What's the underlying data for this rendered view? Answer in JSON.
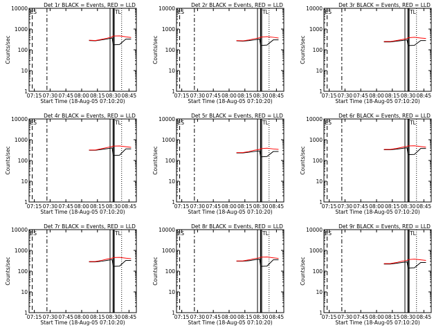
{
  "colors": {
    "events": "#000000",
    "lld": "#ff0000",
    "background": "#ffffff",
    "axes": "#000000"
  },
  "x_tick_labels": [
    "07:15",
    "07:30",
    "07:45",
    "08:00",
    "08:15",
    "08:30",
    "08:45"
  ],
  "y_tick_labels": [
    "1",
    "10",
    "100",
    "1000",
    "10000"
  ],
  "ylabel": "Counts/sec",
  "xlabel": "Start Time (18-Aug-05 07:10:20)",
  "marker_labels": [
    "ES",
    "TL"
  ],
  "chart_data": [
    {
      "type": "line",
      "title": "Det 1r BLACK = Events, RED = LLD",
      "xlabel": "Start Time (18-Aug-05 07:10:20)",
      "ylabel": "Counts/sec",
      "xlim": [
        "07:10",
        "08:52"
      ],
      "ylim": [
        1,
        10000
      ],
      "y_scale": "log",
      "x": [
        "08:07",
        "08:13",
        "08:19",
        "08:24",
        "08:29",
        "08:30",
        "08:36",
        "08:42",
        "08:47"
      ],
      "series": [
        {
          "name": "Events",
          "color": "#000000",
          "values": [
            280,
            270,
            300,
            330,
            370,
            175,
            180,
            330,
            330
          ]
        },
        {
          "name": "LLD",
          "color": "#ff0000",
          "values": [
            290,
            280,
            320,
            360,
            420,
            460,
            470,
            420,
            390
          ]
        }
      ]
    },
    {
      "type": "line",
      "title": "Det 2r BLACK = Events, RED = LLD",
      "xlabel": "Start Time (18-Aug-05 07:10:20)",
      "ylabel": "Counts/sec",
      "xlim": [
        "07:10",
        "08:52"
      ],
      "ylim": [
        1,
        10000
      ],
      "y_scale": "log",
      "x": [
        "08:07",
        "08:13",
        "08:19",
        "08:24",
        "08:29",
        "08:30",
        "08:36",
        "08:42",
        "08:47"
      ],
      "series": [
        {
          "name": "Events",
          "color": "#000000",
          "values": [
            270,
            260,
            280,
            300,
            330,
            160,
            170,
            300,
            300
          ]
        },
        {
          "name": "LLD",
          "color": "#ff0000",
          "values": [
            280,
            270,
            300,
            340,
            380,
            410,
            430,
            400,
            370
          ]
        }
      ]
    },
    {
      "type": "line",
      "title": "Det 3r BLACK = Events, RED = LLD",
      "xlabel": "Start Time (18-Aug-05 07:10:20)",
      "ylabel": "Counts/sec",
      "xlim": [
        "07:10",
        "08:52"
      ],
      "ylim": [
        1,
        10000
      ],
      "y_scale": "log",
      "x": [
        "08:07",
        "08:13",
        "08:19",
        "08:24",
        "08:29",
        "08:30",
        "08:36",
        "08:42",
        "08:47"
      ],
      "series": [
        {
          "name": "Events",
          "color": "#000000",
          "values": [
            240,
            240,
            260,
            280,
            300,
            160,
            165,
            280,
            280
          ]
        },
        {
          "name": "LLD",
          "color": "#ff0000",
          "values": [
            250,
            250,
            280,
            310,
            350,
            380,
            400,
            370,
            350
          ]
        }
      ]
    },
    {
      "type": "line",
      "title": "Det 4r BLACK = Events, RED = LLD",
      "xlabel": "Start Time (18-Aug-05 07:10:20)",
      "ylabel": "Counts/sec",
      "xlim": [
        "07:10",
        "08:52"
      ],
      "ylim": [
        1,
        10000
      ],
      "y_scale": "log",
      "x": [
        "08:07",
        "08:13",
        "08:19",
        "08:24",
        "08:29",
        "08:30",
        "08:36",
        "08:42",
        "08:47"
      ],
      "series": [
        {
          "name": "Events",
          "color": "#000000",
          "values": [
            310,
            310,
            340,
            370,
            400,
            175,
            180,
            360,
            360
          ]
        },
        {
          "name": "LLD",
          "color": "#ff0000",
          "values": [
            320,
            320,
            370,
            420,
            470,
            490,
            500,
            460,
            430
          ]
        }
      ]
    },
    {
      "type": "line",
      "title": "Det 5r BLACK = Events, RED = LLD",
      "xlabel": "Start Time (18-Aug-05 07:10:20)",
      "ylabel": "Counts/sec",
      "xlim": [
        "07:10",
        "08:52"
      ],
      "ylim": [
        1,
        10000
      ],
      "y_scale": "log",
      "x": [
        "08:07",
        "08:13",
        "08:19",
        "08:24",
        "08:29",
        "08:30",
        "08:36",
        "08:42",
        "08:47"
      ],
      "series": [
        {
          "name": "Events",
          "color": "#000000",
          "values": [
            230,
            230,
            250,
            270,
            290,
            150,
            155,
            270,
            270
          ]
        },
        {
          "name": "LLD",
          "color": "#ff0000",
          "values": [
            240,
            240,
            270,
            310,
            340,
            370,
            390,
            360,
            340
          ]
        }
      ]
    },
    {
      "type": "line",
      "title": "Det 6r BLACK = Events, RED = LLD",
      "xlabel": "Start Time (18-Aug-05 07:10:20)",
      "ylabel": "Counts/sec",
      "xlim": [
        "07:10",
        "08:52"
      ],
      "ylim": [
        1,
        10000
      ],
      "y_scale": "log",
      "x": [
        "08:07",
        "08:13",
        "08:19",
        "08:24",
        "08:29",
        "08:30",
        "08:36",
        "08:42",
        "08:47"
      ],
      "series": [
        {
          "name": "Events",
          "color": "#000000",
          "values": [
            330,
            330,
            350,
            380,
            410,
            190,
            195,
            380,
            380
          ]
        },
        {
          "name": "LLD",
          "color": "#ff0000",
          "values": [
            340,
            340,
            380,
            430,
            480,
            500,
            510,
            470,
            440
          ]
        }
      ]
    },
    {
      "type": "line",
      "title": "Det 7r BLACK = Events, RED = LLD",
      "xlabel": "Start Time (18-Aug-05 07:10:20)",
      "ylabel": "Counts/sec",
      "xlim": [
        "07:10",
        "08:52"
      ],
      "ylim": [
        1,
        10000
      ],
      "y_scale": "log",
      "x": [
        "08:07",
        "08:13",
        "08:19",
        "08:24",
        "08:29",
        "08:30",
        "08:36",
        "08:42",
        "08:47"
      ],
      "series": [
        {
          "name": "Events",
          "color": "#000000",
          "values": [
            280,
            280,
            300,
            330,
            360,
            170,
            175,
            330,
            330
          ]
        },
        {
          "name": "LLD",
          "color": "#ff0000",
          "values": [
            290,
            290,
            330,
            380,
            420,
            450,
            460,
            420,
            400
          ]
        }
      ]
    },
    {
      "type": "line",
      "title": "Det 8r BLACK = Events, RED = LLD",
      "xlabel": "Start Time (18-Aug-05 07:10:20)",
      "ylabel": "Counts/sec",
      "xlim": [
        "07:10",
        "08:52"
      ],
      "ylim": [
        1,
        10000
      ],
      "y_scale": "log",
      "x": [
        "08:07",
        "08:13",
        "08:19",
        "08:24",
        "08:29",
        "08:30",
        "08:36",
        "08:42",
        "08:47"
      ],
      "series": [
        {
          "name": "Events",
          "color": "#000000",
          "values": [
            300,
            300,
            320,
            350,
            380,
            170,
            175,
            350,
            350
          ]
        },
        {
          "name": "LLD",
          "color": "#ff0000",
          "values": [
            310,
            310,
            350,
            400,
            440,
            470,
            480,
            440,
            410
          ]
        }
      ]
    },
    {
      "type": "line",
      "title": "Det 9r BLACK = Events, RED = LLD",
      "xlabel": "Start Time (18-Aug-05 07:10:20)",
      "ylabel": "Counts/sec",
      "xlim": [
        "07:10",
        "08:52"
      ],
      "ylim": [
        1,
        10000
      ],
      "y_scale": "log",
      "x": [
        "08:07",
        "08:13",
        "08:19",
        "08:24",
        "08:29",
        "08:30",
        "08:36",
        "08:42",
        "08:47"
      ],
      "series": [
        {
          "name": "Events",
          "color": "#000000",
          "values": [
            220,
            220,
            240,
            260,
            280,
            140,
            145,
            260,
            260
          ]
        },
        {
          "name": "LLD",
          "color": "#ff0000",
          "values": [
            230,
            230,
            260,
            300,
            330,
            360,
            380,
            350,
            330
          ]
        }
      ]
    }
  ]
}
